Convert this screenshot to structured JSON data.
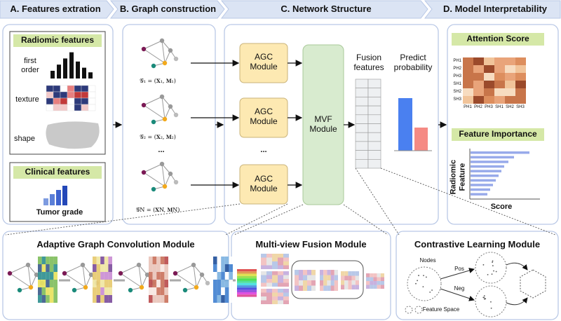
{
  "header": {
    "steps": [
      "A. Features extration",
      "B. Graph construction",
      "C. Network Structure",
      "D. Model Interpretability"
    ]
  },
  "panel_a": {
    "radiomic_title": "Radiomic features",
    "radiomic_items": [
      "first order",
      "texture",
      "shape"
    ],
    "clinical_title": "Clinical features",
    "clinical_item": "Tumor grade"
  },
  "panel_b": {
    "graphs": [
      "𝒢₁ = (𝐗₁, 𝐌₁)",
      "𝒢₂ = (𝐗₂, 𝐌₂)",
      "𝒢N = (𝐗N, 𝐌N)"
    ],
    "ellipsis": "..."
  },
  "panel_c": {
    "agc_modules": [
      "AGC Module",
      "AGC Module",
      "AGC Module"
    ],
    "ellipsis": "...",
    "mvf_module": "MVF Module",
    "fusion_label": "Fusion features",
    "predict_label": "Predict probability"
  },
  "panel_d": {
    "attention_title": "Attention Score",
    "heatmap_labels": [
      "PH1",
      "PH2",
      "PH3",
      "SH1",
      "SH2",
      "SH3"
    ],
    "importance_title": "Feature Importance",
    "importance_ylabel": "Radiomic Feature",
    "importance_xlabel": "Score"
  },
  "bottom": {
    "agc_title": "Adaptive Graph Convolution Module",
    "mvf_title": "Multi-view Fusion Module",
    "cl_title": "Contrastive Learning Module",
    "cl_labels": {
      "nodes": "Nodes",
      "pos": "Pos",
      "neg": "Neg",
      "feature_space": "Feature Space"
    }
  }
}
